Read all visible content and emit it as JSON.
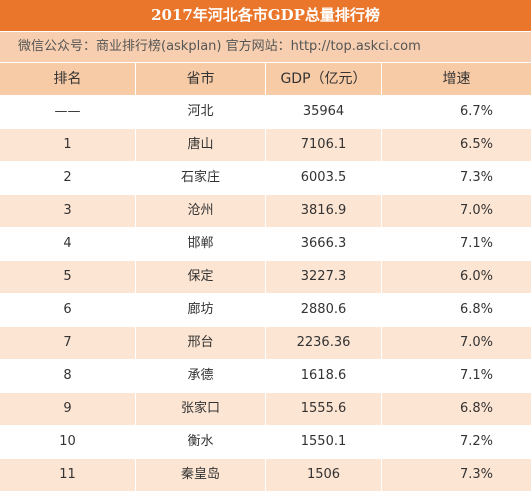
{
  "header": {
    "title": "2017年河北各市GDP总量排行榜",
    "subtitle": "微信公众号：商业排行榜(askplan)  官方网站：http://top.askci.com"
  },
  "table": {
    "columns": [
      "排名",
      "省市",
      "GDP（亿元）",
      "增速"
    ],
    "rows": [
      [
        "——",
        "河北",
        "35964",
        "6.7%"
      ],
      [
        "1",
        "唐山",
        "7106.1",
        "6.5%"
      ],
      [
        "2",
        "石家庄",
        "6003.5",
        "7.3%"
      ],
      [
        "3",
        "沧州",
        "3816.9",
        "7.0%"
      ],
      [
        "4",
        "邯郸",
        "3666.3",
        "7.1%"
      ],
      [
        "5",
        "保定",
        "3227.3",
        "6.0%"
      ],
      [
        "6",
        "廊坊",
        "2880.6",
        "6.8%"
      ],
      [
        "7",
        "邢台",
        "2236.36",
        "7.0%"
      ],
      [
        "8",
        "承德",
        "1618.6",
        "7.1%"
      ],
      [
        "9",
        "张家口",
        "1555.6",
        "6.8%"
      ],
      [
        "10",
        "衡水",
        "1550.1",
        "7.2%"
      ],
      [
        "11",
        "秦皇岛",
        "1506",
        "7.3%"
      ]
    ]
  }
}
